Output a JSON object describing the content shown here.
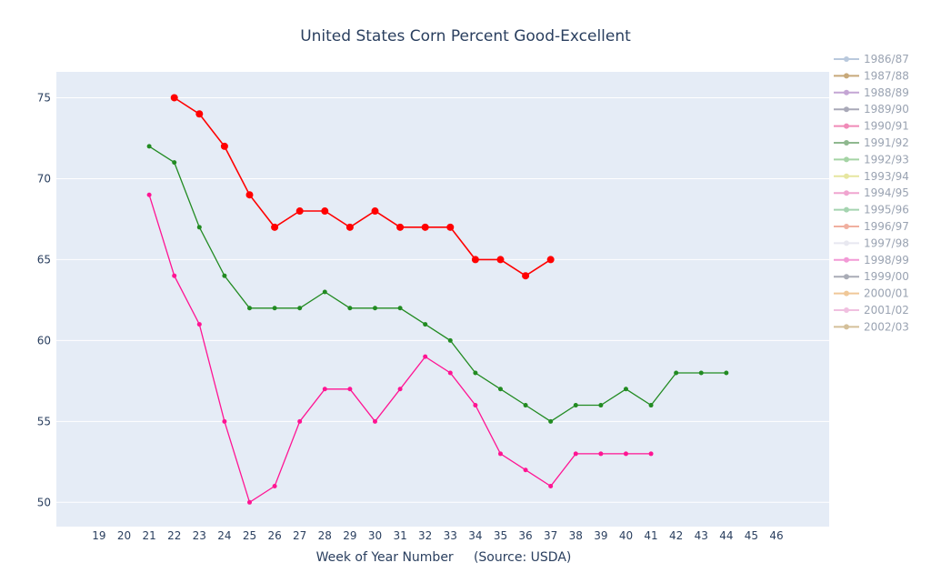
{
  "chart_data": {
    "type": "line",
    "title": "United States Corn Percent Good-Excellent",
    "xlabel": "Week of Year Number     (Source: USDA)",
    "ylabel": "",
    "x_ticks": [
      19,
      20,
      21,
      22,
      23,
      24,
      25,
      26,
      27,
      28,
      29,
      30,
      31,
      32,
      33,
      34,
      35,
      36,
      37,
      38,
      39,
      40,
      41,
      42,
      43,
      44,
      45,
      46
    ],
    "y_ticks": [
      50,
      55,
      60,
      65,
      70,
      75
    ],
    "xlim": [
      17.3,
      48.1
    ],
    "ylim": [
      48.5,
      76.6
    ],
    "grid": true,
    "legend_position": "right",
    "legend": [
      {
        "name": "1986/87",
        "color": "#b9c9dd"
      },
      {
        "name": "1987/88",
        "color": "#c8a97a"
      },
      {
        "name": "1988/89",
        "color": "#c4a5d4"
      },
      {
        "name": "1989/90",
        "color": "#a9a9b8"
      },
      {
        "name": "1990/91",
        "color": "#f08bb8"
      },
      {
        "name": "1991/92",
        "color": "#8fb88f"
      },
      {
        "name": "1992/93",
        "color": "#a5d4a5"
      },
      {
        "name": "1993/94",
        "color": "#e6e6a0"
      },
      {
        "name": "1994/95",
        "color": "#f0a5d0"
      },
      {
        "name": "1995/96",
        "color": "#a5d4b0"
      },
      {
        "name": "1996/97",
        "color": "#f0b0a0"
      },
      {
        "name": "1997/98",
        "color": "#e8e8f0"
      },
      {
        "name": "1998/99",
        "color": "#f29ad6"
      },
      {
        "name": "1999/00",
        "color": "#a9acb6"
      },
      {
        "name": "2000/01",
        "color": "#f0c898"
      },
      {
        "name": "2001/02",
        "color": "#f0c0e0"
      },
      {
        "name": "2002/03",
        "color": "#d4c09a"
      }
    ],
    "series": [
      {
        "color": "#ff0000",
        "x": [
          22,
          23,
          24,
          25,
          26,
          27,
          28,
          29,
          30,
          31,
          32,
          33,
          34,
          35,
          36,
          37
        ],
        "values": [
          75,
          74,
          72,
          69,
          67,
          68,
          68,
          67,
          68,
          67,
          67,
          67,
          65,
          65,
          64,
          65
        ]
      },
      {
        "color": "#228b22",
        "x": [
          21,
          22,
          23,
          24,
          25,
          26,
          27,
          28,
          29,
          30,
          31,
          32,
          33,
          34,
          35,
          36,
          37,
          38,
          39,
          40,
          41,
          42,
          43,
          44
        ],
        "values": [
          72,
          71,
          67,
          64,
          62,
          62,
          62,
          63,
          62,
          62,
          62,
          61,
          60,
          58,
          57,
          56,
          55,
          56,
          56,
          57,
          56,
          58,
          58,
          58
        ]
      },
      {
        "color": "#ff1493",
        "x": [
          21,
          22,
          23,
          24,
          25,
          26,
          27,
          28,
          29,
          30,
          31,
          32,
          33,
          34,
          35,
          36,
          37,
          38,
          39,
          40,
          41
        ],
        "values": [
          69,
          64,
          61,
          55,
          50,
          51,
          55,
          57,
          57,
          55,
          57,
          59,
          58,
          56,
          53,
          52,
          51,
          53,
          53,
          53,
          53
        ]
      }
    ]
  }
}
